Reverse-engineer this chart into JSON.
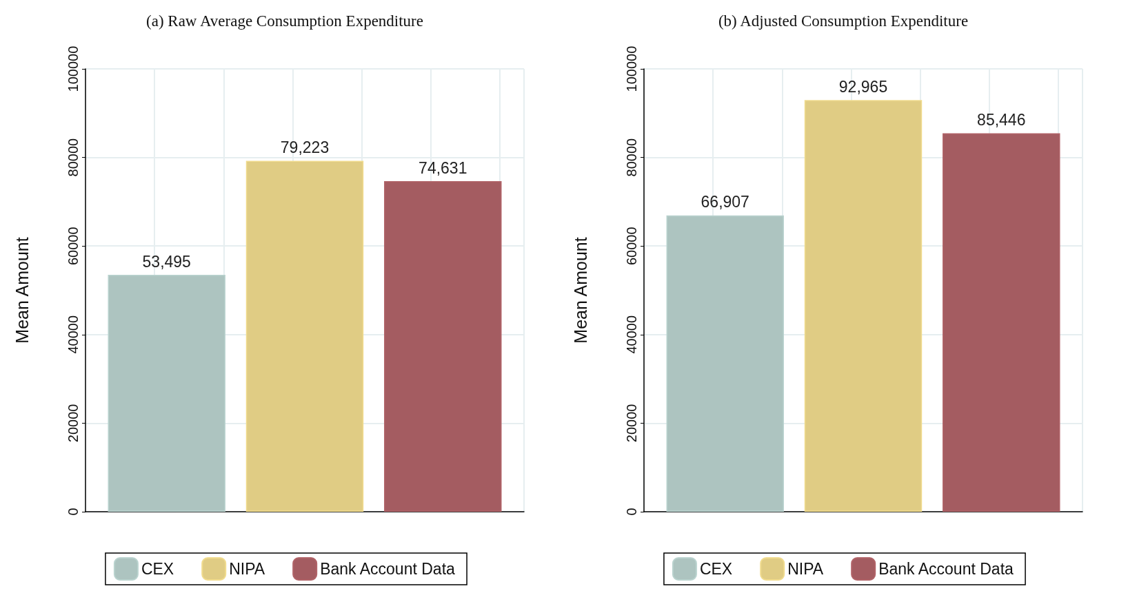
{
  "chart_data": [
    {
      "type": "bar",
      "title": "(a) Raw Average Consumption Expenditure",
      "ylabel": "Mean Amount",
      "categories": [
        null
      ],
      "series": [
        {
          "name": "CEX",
          "color": "#adc4c0",
          "values": [
            53495
          ],
          "value_labels": [
            "53,495"
          ]
        },
        {
          "name": "NIPA",
          "color": "#e0cc84",
          "values": [
            79223
          ],
          "value_labels": [
            "79,223"
          ]
        },
        {
          "name": "Bank Account Data",
          "color": "#a45c61",
          "values": [
            74631
          ],
          "value_labels": [
            "74,631"
          ]
        }
      ],
      "ylim": [
        0,
        100000
      ],
      "yticks": [
        0,
        20000,
        40000,
        60000,
        80000,
        100000
      ],
      "grid": true,
      "legend": "bottom"
    },
    {
      "type": "bar",
      "title": "(b) Adjusted Consumption Expenditure",
      "ylabel": "Mean Amount",
      "categories": [
        null
      ],
      "series": [
        {
          "name": "CEX",
          "color": "#adc4c0",
          "values": [
            66907
          ],
          "value_labels": [
            "66,907"
          ]
        },
        {
          "name": "NIPA",
          "color": "#e0cc84",
          "values": [
            92965
          ],
          "value_labels": [
            "92,965"
          ]
        },
        {
          "name": "Bank Account Data",
          "color": "#a45c61",
          "values": [
            85446
          ],
          "value_labels": [
            "85,446"
          ]
        }
      ],
      "ylim": [
        0,
        100000
      ],
      "yticks": [
        0,
        20000,
        40000,
        60000,
        80000,
        100000
      ],
      "grid": true,
      "legend": "bottom"
    }
  ]
}
